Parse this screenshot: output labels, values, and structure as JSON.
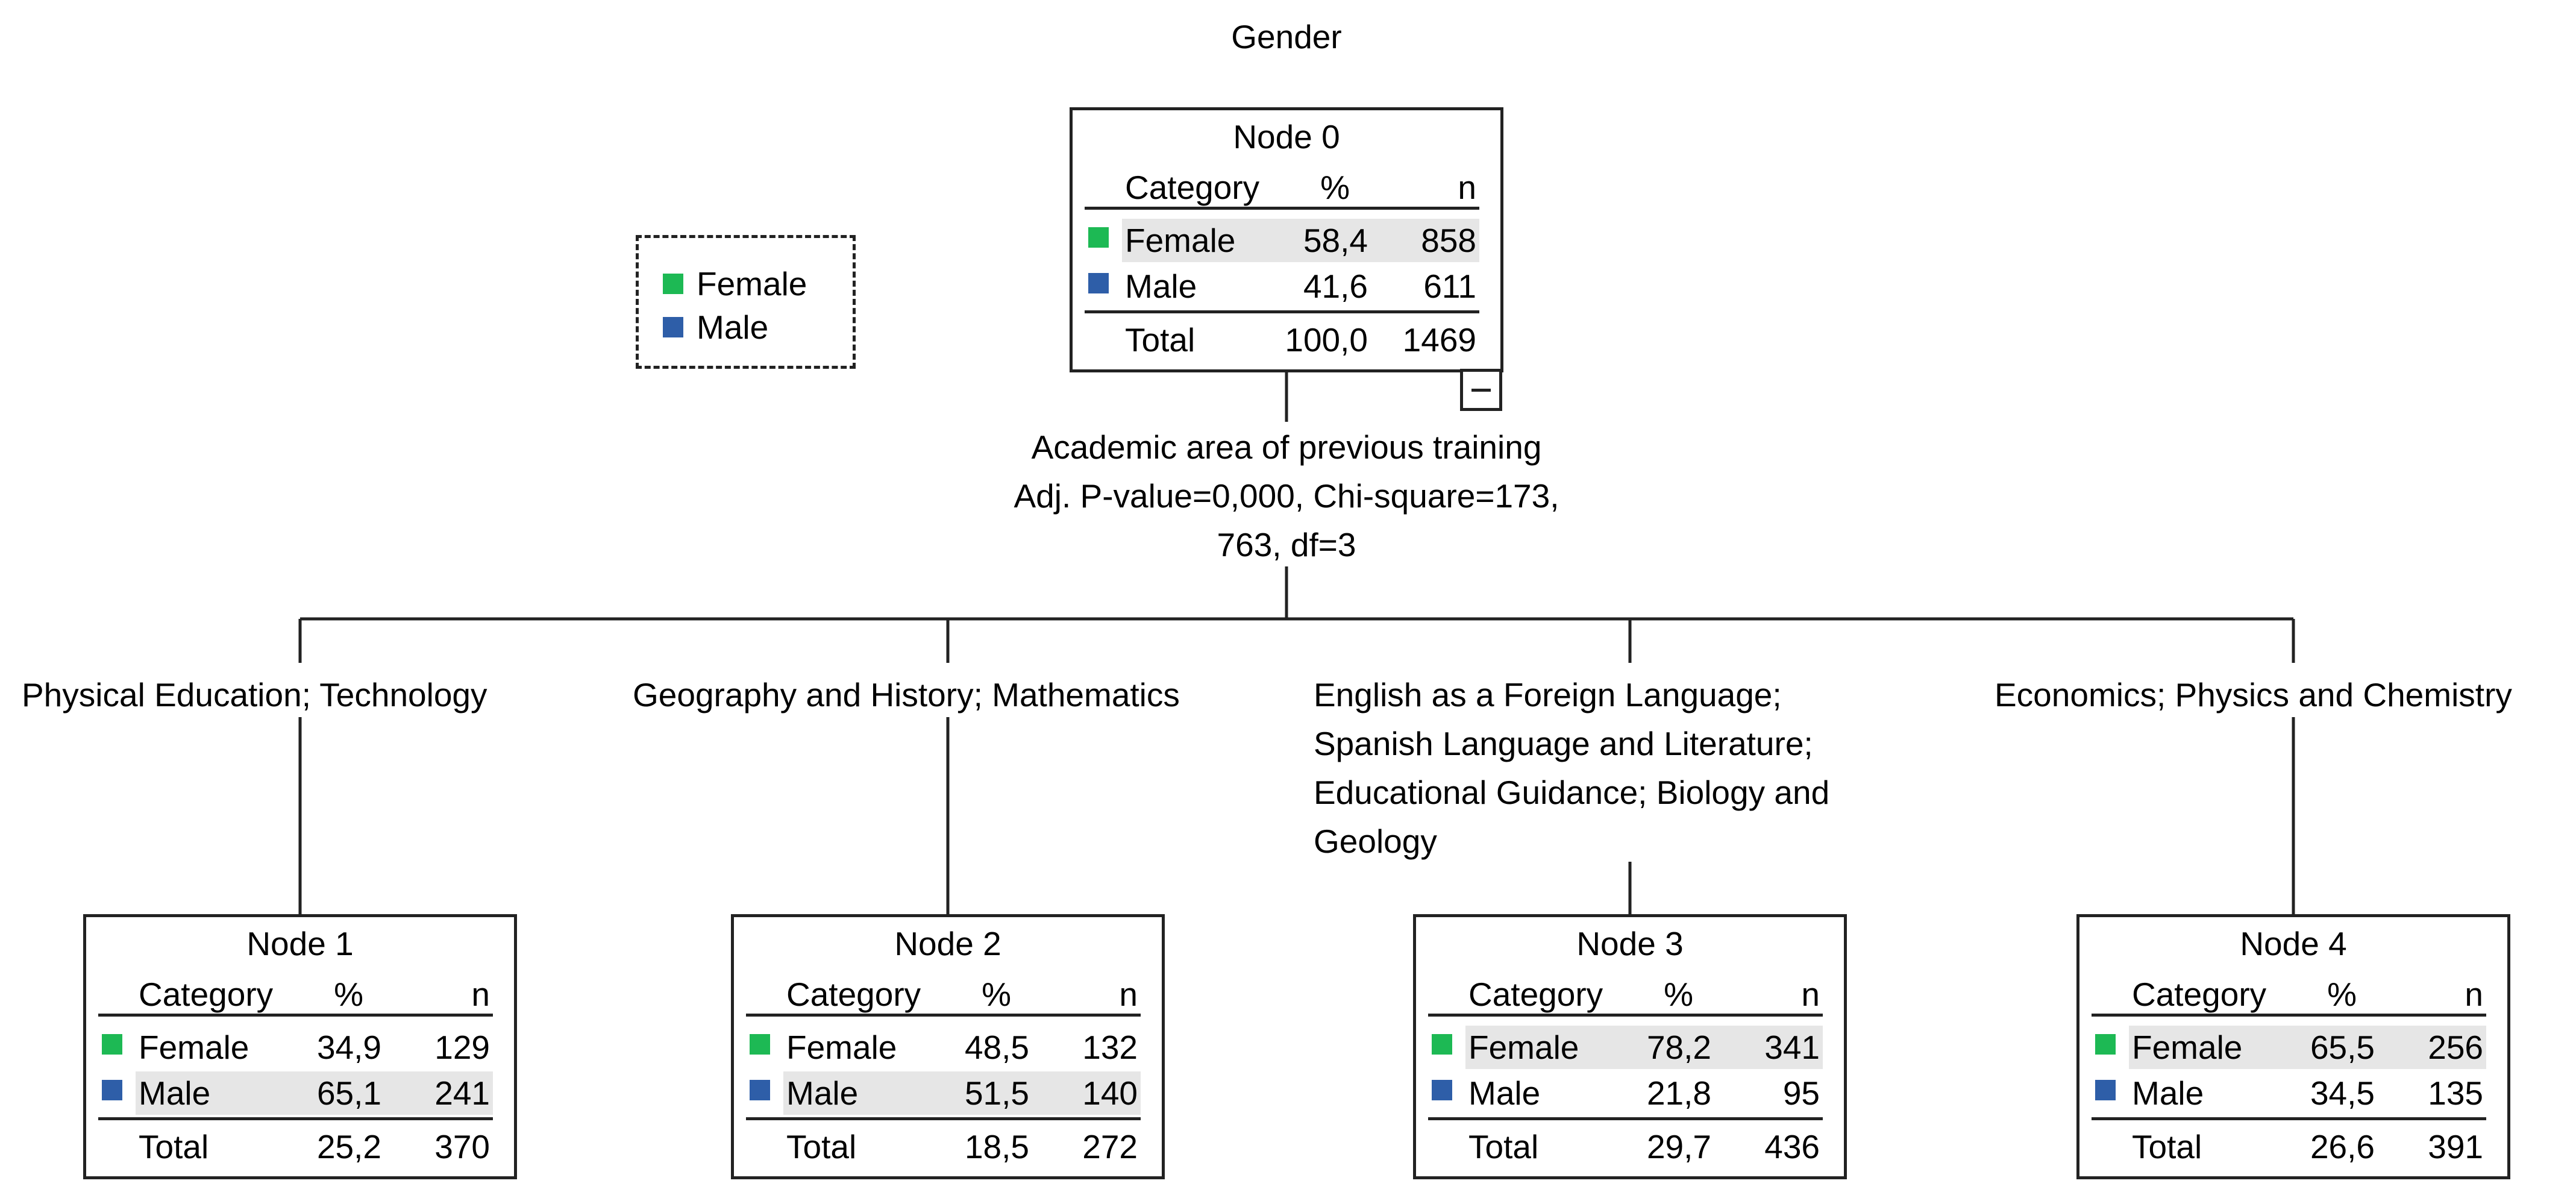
{
  "diagram_title": "Gender",
  "colors": {
    "female": "#1db954",
    "male": "#2e5ea8",
    "line": "#222222"
  },
  "legend": [
    {
      "label": "Female",
      "color_key": "female"
    },
    {
      "label": "Male",
      "color_key": "male"
    }
  ],
  "root": {
    "title": "Node 0",
    "headers": {
      "category": "Category",
      "pct": "%",
      "n": "n"
    },
    "rows": [
      {
        "category": "Female",
        "pct": "58,4",
        "n": "858",
        "color_key": "female",
        "shaded": true
      },
      {
        "category": "Male",
        "pct": "41,6",
        "n": "611",
        "color_key": "male",
        "shaded": false
      }
    ],
    "total": {
      "label": "Total",
      "pct": "100,0",
      "n": "1469"
    }
  },
  "split": {
    "variable": "Academic area of previous training",
    "stats_line1": "Adj. P-value=0,000, Chi-square=173,",
    "stats_line2": "763, df=3"
  },
  "children": [
    {
      "branch_label": [
        "Physical Education; Technology"
      ],
      "title": "Node 1",
      "headers": {
        "category": "Category",
        "pct": "%",
        "n": "n"
      },
      "rows": [
        {
          "category": "Female",
          "pct": "34,9",
          "n": "129",
          "color_key": "female",
          "shaded": false
        },
        {
          "category": "Male",
          "pct": "65,1",
          "n": "241",
          "color_key": "male",
          "shaded": true
        }
      ],
      "total": {
        "label": "Total",
        "pct": "25,2",
        "n": "370"
      }
    },
    {
      "branch_label": [
        "Geography and History; Mathematics"
      ],
      "title": "Node 2",
      "headers": {
        "category": "Category",
        "pct": "%",
        "n": "n"
      },
      "rows": [
        {
          "category": "Female",
          "pct": "48,5",
          "n": "132",
          "color_key": "female",
          "shaded": false
        },
        {
          "category": "Male",
          "pct": "51,5",
          "n": "140",
          "color_key": "male",
          "shaded": true
        }
      ],
      "total": {
        "label": "Total",
        "pct": "18,5",
        "n": "272"
      }
    },
    {
      "branch_label": [
        "English as a Foreign Language;",
        "Spanish Language and Literature;",
        "Educational Guidance; Biology and",
        "Geology"
      ],
      "title": "Node 3",
      "headers": {
        "category": "Category",
        "pct": "%",
        "n": "n"
      },
      "rows": [
        {
          "category": "Female",
          "pct": "78,2",
          "n": "341",
          "color_key": "female",
          "shaded": true
        },
        {
          "category": "Male",
          "pct": "21,8",
          "n": "95",
          "color_key": "male",
          "shaded": false
        }
      ],
      "total": {
        "label": "Total",
        "pct": "29,7",
        "n": "436"
      }
    },
    {
      "branch_label": [
        "Economics; Physics and Chemistry"
      ],
      "title": "Node 4",
      "headers": {
        "category": "Category",
        "pct": "%",
        "n": "n"
      },
      "rows": [
        {
          "category": "Female",
          "pct": "65,5",
          "n": "256",
          "color_key": "female",
          "shaded": true
        },
        {
          "category": "Male",
          "pct": "34,5",
          "n": "135",
          "color_key": "male",
          "shaded": false
        }
      ],
      "total": {
        "label": "Total",
        "pct": "26,6",
        "n": "391"
      }
    }
  ]
}
